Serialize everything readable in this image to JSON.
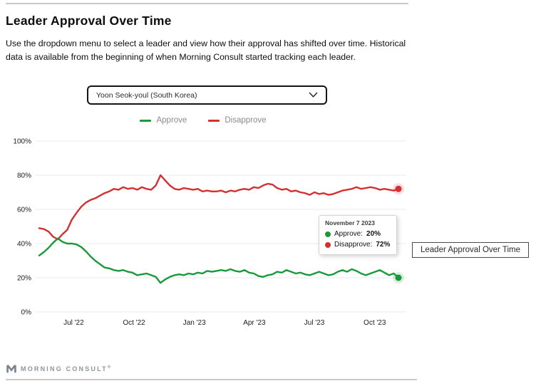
{
  "page": {
    "title": "Leader Approval Over Time",
    "description": "Use the dropdown menu to select a leader and view how their approval has shifted over time. Historical data is available from the beginning of when Morning Consult started tracking each leader."
  },
  "dropdown": {
    "selected": "Yoon Seok-youl (South Korea)",
    "chevron_icon": "chevron-down"
  },
  "legend": [
    {
      "label": "Approve",
      "color": "#189A3B"
    },
    {
      "label": "Disapprove",
      "color": "#D52F2F"
    }
  ],
  "tooltip": {
    "date": "November 7 2023",
    "rows": [
      {
        "label": "Approve:",
        "value": "20%"
      },
      {
        "label": "Disapprove:",
        "value": "72%"
      }
    ]
  },
  "floating_label": "Leader Approval Over Time",
  "footer": {
    "brand": "MORNING CONSULT",
    "trademark": "®",
    "logo_icon": "morning-consult-m"
  },
  "chart_data": {
    "type": "line",
    "title": "Leader Approval Over Time",
    "xlabel": "",
    "ylabel": "",
    "ylim": [
      0,
      100
    ],
    "grid": true,
    "legend_position": "top",
    "x_range": [
      "mid-May 2022",
      "November 7 2023"
    ],
    "x_interval": "weekly",
    "y_ticks": [
      "0%",
      "20%",
      "40%",
      "60%",
      "80%",
      "100%"
    ],
    "x_ticks": [
      {
        "label": "Jul '22",
        "f": 0.096
      },
      {
        "label": "Oct '22",
        "f": 0.264
      },
      {
        "label": "Jan '23",
        "f": 0.432
      },
      {
        "label": "Apr '23",
        "f": 0.599
      },
      {
        "label": "Jul '23",
        "f": 0.766
      },
      {
        "label": "Oct '23",
        "f": 0.934
      }
    ],
    "series": [
      {
        "name": "Approve",
        "color": "#189A3B",
        "values": [
          33,
          35,
          37.5,
          40.5,
          43,
          41,
          40,
          40,
          39.5,
          38,
          35.5,
          32.5,
          30,
          28,
          26,
          25.5,
          24.5,
          24,
          24.5,
          23.5,
          23,
          21.5,
          22,
          22.5,
          21.5,
          20.5,
          17,
          19,
          20.5,
          21.5,
          22,
          21.5,
          22.5,
          22,
          23,
          22.5,
          24,
          23.5,
          24,
          24.5,
          24,
          25,
          24,
          23.5,
          24.5,
          23,
          22.5,
          21,
          20.5,
          21.5,
          22,
          23.5,
          23,
          24.5,
          23.5,
          22.5,
          23,
          22,
          21.5,
          22.5,
          23.5,
          22.5,
          21.5,
          22,
          23.5,
          24.5,
          23.5,
          25,
          24,
          22.5,
          21.5,
          22.5,
          23.5,
          24.5,
          23,
          21.5,
          22.5,
          20
        ]
      },
      {
        "name": "Disapprove",
        "color": "#D52F2F",
        "values": [
          49,
          48.5,
          47,
          44,
          42.5,
          45.5,
          48,
          54,
          58,
          61.5,
          64,
          65.5,
          66.5,
          68,
          69.5,
          70.5,
          72,
          71.5,
          73,
          72,
          72.5,
          71.5,
          73,
          72,
          71.5,
          74,
          80,
          77,
          74,
          72,
          71.5,
          72.5,
          72,
          71.5,
          72,
          70.5,
          71,
          70.5,
          70.5,
          71,
          70,
          71,
          70.5,
          71.5,
          72,
          71.5,
          73,
          72.5,
          74,
          75,
          74.5,
          72.5,
          71.5,
          72,
          70.5,
          71,
          70,
          69.5,
          68.5,
          70,
          69,
          69.5,
          68.5,
          69,
          70,
          71,
          71.5,
          72,
          73,
          72,
          72.5,
          73,
          72.5,
          71.5,
          72,
          71.5,
          71,
          72
        ]
      }
    ],
    "end_markers": [
      {
        "series": "Approve",
        "value": 20
      },
      {
        "series": "Disapprove",
        "value": 72
      }
    ]
  }
}
